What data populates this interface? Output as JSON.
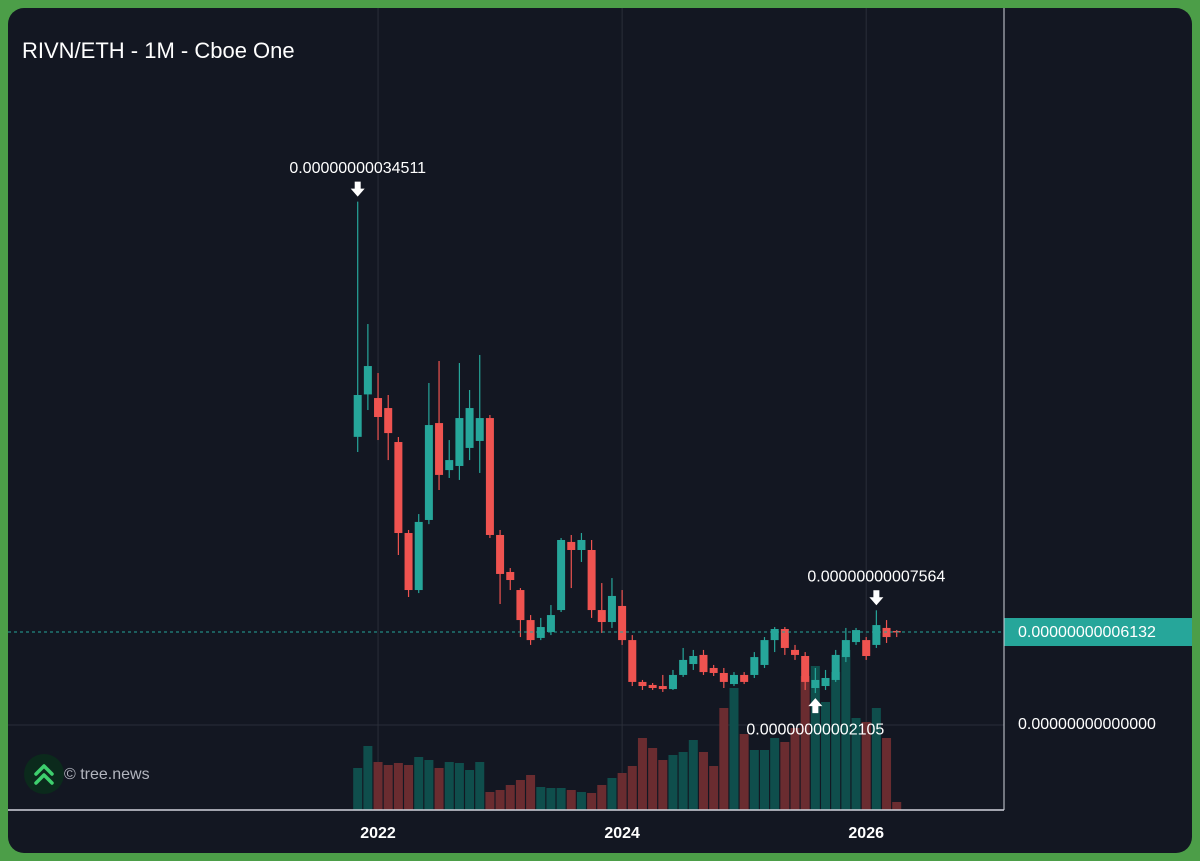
{
  "chart_data": {
    "type": "candlestick",
    "title": "RIVN/ETH - 1M - Cboe One",
    "watermark": "© tree.news",
    "categories": [
      null,
      null,
      "2022",
      null,
      null,
      null,
      null,
      null,
      null,
      null,
      null,
      null,
      null,
      null,
      null,
      null,
      null,
      null,
      null,
      null,
      null,
      null,
      null,
      null,
      null,
      null,
      "2024",
      null,
      null,
      null,
      null,
      null,
      null,
      null,
      null,
      null,
      null,
      null,
      null,
      null,
      null,
      null,
      null,
      null,
      null,
      null,
      null,
      null,
      null,
      null,
      "2026",
      null,
      null,
      null
    ],
    "open": [
      1.9e-10,
      2.18e-10,
      2.156e-10,
      2.09e-10,
      1.866e-10,
      1.266e-10,
      8.9e-11,
      1.352e-10,
      1.991e-10,
      1.681e-10,
      1.708e-10,
      1.827e-10,
      1.873e-10,
      2.024e-10,
      1.253e-10,
      1.009e-10,
      8.9e-11,
      6.92e-11,
      5.74e-11,
      6.13e-11,
      7.58e-11,
      1.207e-10,
      1.154e-10,
      1.154e-10,
      7.58e-11,
      6.79e-11,
      7.85e-11,
      5.6e-11,
      2.84e-11,
      2.64e-11,
      2.57e-11,
      2.37e-11,
      3.3e-11,
      4.02e-11,
      4.62e-11,
      3.76e-11,
      3.43e-11,
      2.7e-11,
      3.3e-11,
      3.3e-11,
      3.96e-11,
      5.6e-11,
      6.33e-11,
      4.95e-11,
      4.55e-11,
      2.44e-11,
      2.57e-11,
      2.97e-11,
      4.48e-11,
      5.47e-11,
      5.6e-11,
      5.28e-11,
      6.4e-11,
      6.2e-11
    ],
    "high": [
      3.4511e-10,
      2.644e-10,
      2.321e-10,
      2.176e-10,
      1.899e-10,
      1.286e-10,
      1.391e-10,
      2.255e-10,
      2.4e-10,
      1.879e-10,
      2.387e-10,
      2.209e-10,
      2.44e-10,
      2.044e-10,
      1.286e-10,
      1.035e-10,
      9.03e-11,
      7.25e-11,
      7.06e-11,
      7.91e-11,
      1.233e-10,
      1.253e-10,
      1.266e-10,
      1.22e-10,
      9.36e-11,
      9.69e-11,
      8.9e-11,
      5.93e-11,
      2.97e-11,
      2.77e-11,
      3.3e-11,
      3.63e-11,
      5.08e-11,
      4.95e-11,
      4.95e-11,
      3.96e-11,
      3.76e-11,
      3.49e-11,
      3.49e-11,
      4.81e-11,
      5.8e-11,
      6.46e-11,
      6.46e-11,
      5.28e-11,
      4.81e-11,
      3.76e-11,
      3.63e-11,
      4.95e-11,
      6.4e-11,
      6.4e-11,
      5.8e-11,
      7.564e-11,
      6.92e-11,
      6.26e-11
    ],
    "low": [
      1.8e-10,
      2.077e-10,
      1.879e-10,
      1.747e-10,
      1.121e-10,
      8.44e-11,
      8.7e-11,
      1.325e-10,
      1.55e-10,
      1.629e-10,
      1.616e-10,
      1.747e-10,
      1.662e-10,
      1.233e-10,
      7.98e-11,
      8.9e-11,
      5.8e-11,
      5.28e-11,
      5.6e-11,
      5.93e-11,
      7.45e-11,
      9.03e-11,
      1.075e-10,
      7.06e-11,
      6.07e-11,
      6.4e-11,
      5.28e-11,
      2.57e-11,
      2.31e-11,
      2.31e-11,
      2.18e-11,
      2.31e-11,
      3.17e-11,
      3.63e-11,
      3.3e-11,
      3.23e-11,
      2.44e-11,
      2.57e-11,
      2.7e-11,
      3.1e-11,
      3.76e-11,
      4.81e-11,
      4.62e-11,
      4.29e-11,
      2.31e-11,
      2.105e-11,
      2.31e-11,
      2.84e-11,
      4.15e-11,
      5.28e-11,
      4.29e-11,
      5.08e-11,
      5.41e-11,
      5.8e-11
    ],
    "close": [
      2.176e-10,
      2.367e-10,
      2.031e-10,
      1.925e-10,
      1.266e-10,
      8.9e-11,
      1.339e-10,
      1.978e-10,
      1.649e-10,
      1.747e-10,
      2.024e-10,
      2.09e-10,
      2.024e-10,
      1.253e-10,
      9.96e-11,
      9.56e-11,
      6.92e-11,
      5.6e-11,
      6.46e-11,
      7.25e-11,
      1.22e-10,
      1.154e-10,
      1.22e-10,
      7.58e-11,
      6.79e-11,
      8.51e-11,
      5.6e-11,
      2.84e-11,
      2.57e-11,
      2.44e-11,
      2.37e-11,
      3.3e-11,
      4.29e-11,
      4.55e-11,
      3.49e-11,
      3.43e-11,
      2.84e-11,
      3.3e-11,
      2.84e-11,
      4.48e-11,
      5.6e-11,
      6.33e-11,
      5.08e-11,
      4.62e-11,
      2.84e-11,
      2.97e-11,
      3.1e-11,
      4.62e-11,
      5.6e-11,
      6.26e-11,
      4.55e-11,
      6.59e-11,
      5.8e-11,
      6.132e-11
    ],
    "volume": [
      42,
      64,
      48,
      45,
      47,
      45,
      53,
      50,
      42,
      48,
      47,
      40,
      48,
      18,
      20,
      25,
      30,
      35,
      23,
      22,
      22,
      20,
      18,
      17,
      25,
      32,
      37,
      44,
      72,
      62,
      50,
      55,
      58,
      70,
      58,
      44,
      102,
      122,
      76,
      60,
      60,
      72,
      68,
      82,
      134,
      144,
      108,
      138,
      160,
      92,
      88,
      102,
      72,
      8
    ],
    "up_color": "#26a69a",
    "down_color": "#ef5350",
    "volume_up_color": "#0f4e4c",
    "volume_down_color": "#6a2c30",
    "ylim": [
      -5.605e-11,
      4.728e-10
    ],
    "yticks": [
      {
        "value": 0,
        "label": "0.00000000000000"
      }
    ],
    "last_price": {
      "value": 6.132e-11,
      "label": "0.00000000006132"
    },
    "high_labels": [
      {
        "value": 3.4511e-10,
        "label": "0.00000000034511"
      },
      {
        "value": 7.564e-11,
        "label": "0.00000000007564"
      }
    ],
    "low_labels": [
      {
        "value": 2.105e-11,
        "label": "0.00000000002105"
      }
    ],
    "grid": true
  }
}
